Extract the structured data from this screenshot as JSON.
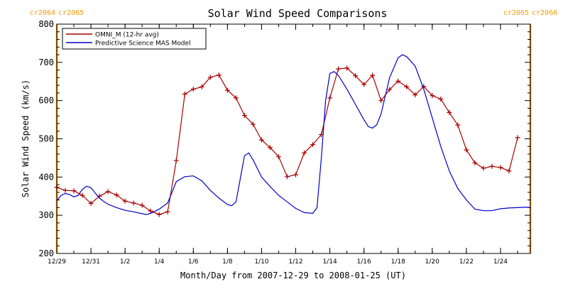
{
  "chart_data": {
    "type": "line",
    "title": "Solar Wind Speed Comparisons",
    "xlabel": "Month/Day from 2007-12-29 to 2008-01-25 (UT)",
    "ylabel": "Solar Wind Speed (km/s)",
    "xlim": [
      "2007-12-29",
      "2008-01-25 18:00"
    ],
    "ylim": [
      200,
      800
    ],
    "y_ticks": [
      200,
      300,
      400,
      500,
      600,
      700,
      800
    ],
    "x_ticks": [
      {
        "date": "2007-12-29",
        "label": "12/29"
      },
      {
        "date": "2007-12-31",
        "label": "12/31"
      },
      {
        "date": "2008-01-02",
        "label": "1/2"
      },
      {
        "date": "2008-01-04",
        "label": "1/4"
      },
      {
        "date": "2008-01-06",
        "label": "1/6"
      },
      {
        "date": "2008-01-08",
        "label": "1/8"
      },
      {
        "date": "2008-01-10",
        "label": "1/10"
      },
      {
        "date": "2008-01-12",
        "label": "1/12"
      },
      {
        "date": "2008-01-14",
        "label": "1/14"
      },
      {
        "date": "2008-01-16",
        "label": "1/16"
      },
      {
        "date": "2008-01-18",
        "label": "1/18"
      },
      {
        "date": "2008-01-20",
        "label": "1/20"
      },
      {
        "date": "2008-01-22",
        "label": "1/22"
      },
      {
        "date": "2008-01-24",
        "label": "1/24"
      }
    ],
    "legend": "top-left",
    "grid": false,
    "series": [
      {
        "name": "OMNI_M (12-hr avg)",
        "color": "#aa0000",
        "marker": "plus",
        "points": [
          [
            "2007-12-29 00:00",
            373
          ],
          [
            "2007-12-29 12:00",
            365
          ],
          [
            "2007-12-30 00:00",
            364
          ],
          [
            "2007-12-30 12:00",
            352
          ],
          [
            "2007-12-31 00:00",
            331
          ],
          [
            "2007-12-31 12:00",
            350
          ],
          [
            "2008-01-01 00:00",
            362
          ],
          [
            "2008-01-01 12:00",
            353
          ],
          [
            "2008-01-02 00:00",
            337
          ],
          [
            "2008-01-02 12:00",
            332
          ],
          [
            "2008-01-03 00:00",
            326
          ],
          [
            "2008-01-03 12:00",
            311
          ],
          [
            "2008-01-04 00:00",
            302
          ],
          [
            "2008-01-04 12:00",
            309
          ],
          [
            "2008-01-05 00:00",
            443
          ],
          [
            "2008-01-05 12:00",
            617
          ],
          [
            "2008-01-06 00:00",
            630
          ],
          [
            "2008-01-06 12:00",
            636
          ],
          [
            "2008-01-07 00:00",
            661
          ],
          [
            "2008-01-07 12:00",
            667
          ],
          [
            "2008-01-08 00:00",
            627
          ],
          [
            "2008-01-08 12:00",
            607
          ],
          [
            "2008-01-09 00:00",
            561
          ],
          [
            "2008-01-09 12:00",
            538
          ],
          [
            "2008-01-10 00:00",
            497
          ],
          [
            "2008-01-10 12:00",
            477
          ],
          [
            "2008-01-11 00:00",
            453
          ],
          [
            "2008-01-11 12:00",
            401
          ],
          [
            "2008-01-12 00:00",
            406
          ],
          [
            "2008-01-12 12:00",
            463
          ],
          [
            "2008-01-13 00:00",
            485
          ],
          [
            "2008-01-13 12:00",
            511
          ],
          [
            "2008-01-14 00:00",
            607
          ],
          [
            "2008-01-14 12:00",
            683
          ],
          [
            "2008-01-15 00:00",
            685
          ],
          [
            "2008-01-15 12:00",
            665
          ],
          [
            "2008-01-16 00:00",
            642
          ],
          [
            "2008-01-16 12:00",
            666
          ],
          [
            "2008-01-17 00:00",
            600
          ],
          [
            "2008-01-17 12:00",
            629
          ],
          [
            "2008-01-18 00:00",
            651
          ],
          [
            "2008-01-18 12:00",
            636
          ],
          [
            "2008-01-19 00:00",
            615
          ],
          [
            "2008-01-19 12:00",
            637
          ],
          [
            "2008-01-20 00:00",
            613
          ],
          [
            "2008-01-20 12:00",
            604
          ],
          [
            "2008-01-21 00:00",
            569
          ],
          [
            "2008-01-21 12:00",
            536
          ],
          [
            "2008-01-22 00:00",
            471
          ],
          [
            "2008-01-22 12:00",
            437
          ],
          [
            "2008-01-23 00:00",
            423
          ],
          [
            "2008-01-23 12:00",
            428
          ],
          [
            "2008-01-24 00:00",
            425
          ],
          [
            "2008-01-24 12:00",
            416
          ],
          [
            "2008-01-25 00:00",
            503
          ]
        ]
      },
      {
        "name": "Predictive Science MAS Model",
        "color": "#0000cc",
        "marker": "none",
        "points": [
          [
            "2007-12-29 00:00",
            338
          ],
          [
            "2007-12-29 06:00",
            352
          ],
          [
            "2007-12-29 12:00",
            357
          ],
          [
            "2007-12-29 18:00",
            354
          ],
          [
            "2007-12-30 00:00",
            348
          ],
          [
            "2007-12-30 06:00",
            352
          ],
          [
            "2007-12-30 12:00",
            368
          ],
          [
            "2007-12-30 18:00",
            376
          ],
          [
            "2007-12-31 00:00",
            372
          ],
          [
            "2007-12-31 06:00",
            358
          ],
          [
            "2007-12-31 12:00",
            345
          ],
          [
            "2007-12-31 18:00",
            336
          ],
          [
            "2008-01-01 00:00",
            329
          ],
          [
            "2008-01-01 12:00",
            320
          ],
          [
            "2008-01-02 00:00",
            313
          ],
          [
            "2008-01-02 12:00",
            309
          ],
          [
            "2008-01-03 00:00",
            304
          ],
          [
            "2008-01-03 06:00",
            302
          ],
          [
            "2008-01-03 12:00",
            305
          ],
          [
            "2008-01-04 00:00",
            316
          ],
          [
            "2008-01-04 12:00",
            332
          ],
          [
            "2008-01-05 00:00",
            388
          ],
          [
            "2008-01-05 12:00",
            401
          ],
          [
            "2008-01-06 00:00",
            403
          ],
          [
            "2008-01-06 12:00",
            390
          ],
          [
            "2008-01-07 00:00",
            365
          ],
          [
            "2008-01-07 12:00",
            345
          ],
          [
            "2008-01-08 00:00",
            328
          ],
          [
            "2008-01-08 06:00",
            325
          ],
          [
            "2008-01-08 12:00",
            335
          ],
          [
            "2008-01-09 00:00",
            456
          ],
          [
            "2008-01-09 06:00",
            463
          ],
          [
            "2008-01-09 12:00",
            445
          ],
          [
            "2008-01-10 00:00",
            400
          ],
          [
            "2008-01-10 12:00",
            375
          ],
          [
            "2008-01-11 00:00",
            352
          ],
          [
            "2008-01-11 12:00",
            335
          ],
          [
            "2008-01-12 00:00",
            318
          ],
          [
            "2008-01-12 12:00",
            307
          ],
          [
            "2008-01-13 00:00",
            305
          ],
          [
            "2008-01-13 06:00",
            320
          ],
          [
            "2008-01-13 12:00",
            450
          ],
          [
            "2008-01-13 18:00",
            600
          ],
          [
            "2008-01-14 00:00",
            671
          ],
          [
            "2008-01-14 06:00",
            676
          ],
          [
            "2008-01-14 12:00",
            666
          ],
          [
            "2008-01-15 00:00",
            630
          ],
          [
            "2008-01-15 12:00",
            590
          ],
          [
            "2008-01-16 00:00",
            550
          ],
          [
            "2008-01-16 06:00",
            532
          ],
          [
            "2008-01-16 12:00",
            528
          ],
          [
            "2008-01-16 18:00",
            537
          ],
          [
            "2008-01-17 00:00",
            565
          ],
          [
            "2008-01-17 12:00",
            660
          ],
          [
            "2008-01-18 00:00",
            712
          ],
          [
            "2008-01-18 06:00",
            720
          ],
          [
            "2008-01-18 12:00",
            715
          ],
          [
            "2008-01-19 00:00",
            690
          ],
          [
            "2008-01-19 12:00",
            630
          ],
          [
            "2008-01-20 00:00",
            555
          ],
          [
            "2008-01-20 12:00",
            480
          ],
          [
            "2008-01-21 00:00",
            416
          ],
          [
            "2008-01-21 12:00",
            370
          ],
          [
            "2008-01-22 00:00",
            340
          ],
          [
            "2008-01-22 12:00",
            316
          ],
          [
            "2008-01-23 00:00",
            312
          ],
          [
            "2008-01-23 12:00",
            312
          ],
          [
            "2008-01-24 00:00",
            317
          ],
          [
            "2008-01-24 12:00",
            319
          ],
          [
            "2008-01-25 00:00",
            320
          ],
          [
            "2008-01-25 12:00",
            321
          ],
          [
            "2008-01-25 18:00",
            320
          ]
        ]
      }
    ],
    "carrington_markers": [
      {
        "date": "2007-12-29",
        "label_left": "cr2064",
        "label_right": "cr2065",
        "color": "#ff9900"
      },
      {
        "date": "2008-01-25 18:00",
        "label_left": "cr2065",
        "label_right": "cr2066",
        "color": "#ff9900"
      }
    ]
  }
}
